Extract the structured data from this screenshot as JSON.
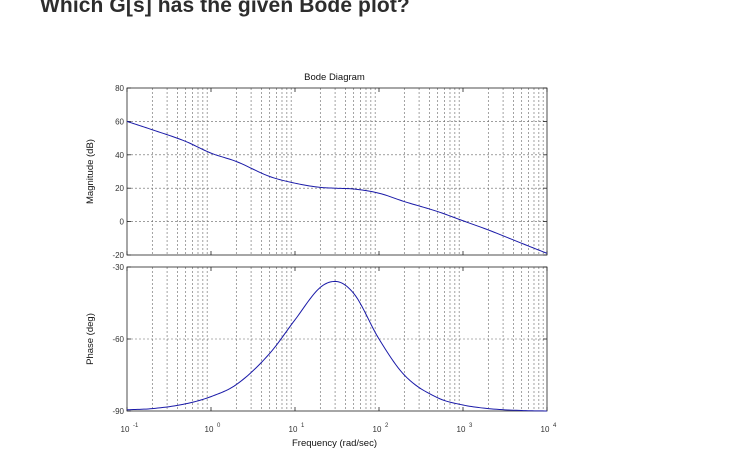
{
  "question": "Which G[s] has the given Bode plot?",
  "chart_data": {
    "type": "line",
    "title": "Bode Diagram",
    "xlabel": "Frequency  (rad/sec)",
    "x_scale": "log",
    "xlim": [
      0.1,
      10000
    ],
    "x_ticks": [
      {
        "base": "10",
        "exp": "-1"
      },
      {
        "base": "10",
        "exp": "0"
      },
      {
        "base": "10",
        "exp": "1"
      },
      {
        "base": "10",
        "exp": "2"
      },
      {
        "base": "10",
        "exp": "3"
      },
      {
        "base": "10",
        "exp": "4"
      }
    ],
    "grid": true,
    "line_color": "#1a1aa8",
    "subplots": [
      {
        "name": "magnitude",
        "ylabel": "Magnitude (dB)",
        "ylim": [
          -20,
          80
        ],
        "y_ticks": [
          "80",
          "60",
          "40",
          "20",
          "0",
          "-20"
        ],
        "y_tick_values": [
          80,
          60,
          40,
          20,
          0,
          -20
        ],
        "x": [
          0.1,
          0.2,
          0.5,
          1,
          2,
          5,
          10,
          20,
          30,
          50,
          100,
          200,
          500,
          1000,
          2000,
          5000,
          10000
        ],
        "y": [
          60,
          55,
          48,
          41,
          36,
          27,
          23,
          20.5,
          20,
          19.5,
          17,
          12,
          6,
          0.5,
          -5,
          -13,
          -19
        ]
      },
      {
        "name": "phase",
        "ylabel": "Phase (deg)",
        "ylim": [
          -90,
          -30
        ],
        "y_ticks": [
          "-30",
          "-60",
          "-90"
        ],
        "y_tick_values": [
          -30,
          -60,
          -90
        ],
        "x": [
          0.1,
          0.2,
          0.5,
          1,
          2,
          5,
          10,
          20,
          30,
          50,
          100,
          200,
          500,
          1000,
          2000,
          5000,
          10000
        ],
        "y": [
          -89.5,
          -89,
          -87,
          -84,
          -79,
          -66,
          -52,
          -38.5,
          -36,
          -41,
          -60,
          -75,
          -84.5,
          -87.5,
          -89,
          -89.8,
          -90
        ]
      }
    ]
  }
}
